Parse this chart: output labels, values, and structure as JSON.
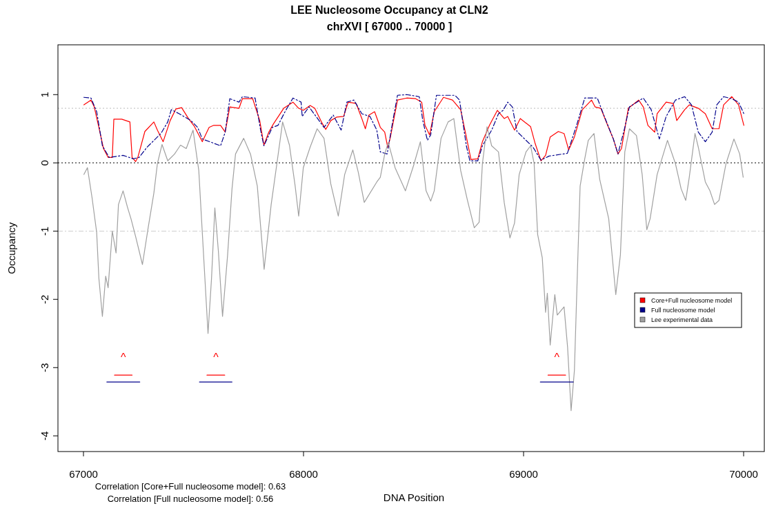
{
  "chart_data": {
    "type": "line",
    "title": "LEE Nucleosome Occupancy at CLN2",
    "subtitle": "chrXVI [ 67000 .. 70000 ]",
    "xlabel": "DNA Position",
    "ylabel": "Occupancy",
    "xlim": [
      66884,
      70094
    ],
    "ylim": [
      -4.23,
      1.73
    ],
    "xticks": [
      67000,
      68000,
      69000,
      70000
    ],
    "yticks": [
      -4,
      -3,
      -2,
      -1,
      0,
      1
    ],
    "grid": false,
    "legend": "right",
    "series": [
      {
        "name": "Core+Full nucleosome model",
        "color": "#ff0000",
        "line_style": "solid",
        "x": [
          67002,
          67034,
          67049,
          67070,
          67091,
          67112,
          67131,
          67138,
          67174,
          67211,
          67221,
          67237,
          67247,
          67279,
          67320,
          67336,
          67362,
          67394,
          67420,
          67446,
          67477,
          67503,
          67540,
          67571,
          67592,
          67623,
          67644,
          67665,
          67707,
          67722,
          67769,
          67801,
          67820,
          67842,
          67863,
          67910,
          67952,
          67978,
          67999,
          68030,
          68051,
          68083,
          68101,
          68124,
          68150,
          68182,
          68203,
          68239,
          68265,
          68281,
          68297,
          68323,
          68349,
          68369,
          68383,
          68395,
          68427,
          68469,
          68510,
          68537,
          68552,
          68573,
          68594,
          68636,
          68677,
          68714,
          68740,
          68761,
          68792,
          68813,
          68845,
          68881,
          68912,
          68928,
          68959,
          68985,
          69032,
          69053,
          69079,
          69100,
          69121,
          69158,
          69184,
          69205,
          69231,
          69267,
          69309,
          69325,
          69351,
          69382,
          69408,
          69429,
          69445,
          69476,
          69523,
          69544,
          69565,
          69596,
          69607,
          69648,
          69680,
          69696,
          69732,
          69753,
          69794,
          69826,
          69857,
          69888,
          69909,
          69946,
          69977,
          70001
        ],
        "values": [
          0.85,
          0.92,
          0.82,
          0.52,
          0.21,
          0.08,
          0.08,
          0.64,
          0.64,
          0.6,
          0.08,
          0.02,
          0.08,
          0.46,
          0.6,
          0.48,
          0.31,
          0.62,
          0.79,
          0.81,
          0.65,
          0.54,
          0.31,
          0.52,
          0.55,
          0.55,
          0.45,
          0.82,
          0.8,
          0.94,
          0.94,
          0.62,
          0.26,
          0.45,
          0.57,
          0.8,
          0.89,
          0.8,
          0.77,
          0.84,
          0.8,
          0.59,
          0.49,
          0.62,
          0.67,
          0.68,
          0.89,
          0.87,
          0.65,
          0.5,
          0.7,
          0.75,
          0.52,
          0.45,
          0.22,
          0.38,
          0.92,
          0.95,
          0.94,
          0.89,
          0.55,
          0.41,
          0.75,
          0.96,
          0.92,
          0.78,
          0.38,
          0.05,
          0.06,
          0.31,
          0.55,
          0.77,
          0.65,
          0.68,
          0.48,
          0.65,
          0.53,
          0.28,
          0.03,
          0.11,
          0.38,
          0.46,
          0.43,
          0.19,
          0.38,
          0.78,
          0.92,
          0.82,
          0.8,
          0.55,
          0.35,
          0.13,
          0.21,
          0.8,
          0.92,
          0.82,
          0.55,
          0.45,
          0.72,
          0.89,
          0.87,
          0.62,
          0.78,
          0.85,
          0.8,
          0.72,
          0.5,
          0.5,
          0.85,
          0.97,
          0.85,
          0.55
        ]
      },
      {
        "name": "Full nucleosome model",
        "color": "#00008b",
        "line_style": "dashed",
        "x": [
          67002,
          67034,
          67060,
          67086,
          67117,
          67180,
          67226,
          67253,
          67289,
          67352,
          67383,
          67399,
          67435,
          67488,
          67519,
          67540,
          67582,
          67623,
          67644,
          67665,
          67707,
          67722,
          67780,
          67806,
          67820,
          67858,
          67884,
          67916,
          67952,
          67989,
          67994,
          68025,
          68057,
          68093,
          68135,
          68171,
          68197,
          68229,
          68265,
          68302,
          68333,
          68349,
          68380,
          68406,
          68427,
          68469,
          68526,
          68542,
          68563,
          68578,
          68604,
          68688,
          68709,
          68740,
          68756,
          68792,
          68813,
          68855,
          68886,
          68907,
          68928,
          68949,
          68970,
          69027,
          69043,
          69079,
          69116,
          69199,
          69241,
          69278,
          69335,
          69367,
          69408,
          69429,
          69460,
          69481,
          69544,
          69580,
          69617,
          69648,
          69690,
          69732,
          69763,
          69794,
          69826,
          69857,
          69878,
          69909,
          69946,
          69977,
          70001
        ],
        "values": [
          0.96,
          0.95,
          0.75,
          0.25,
          0.08,
          0.11,
          0.06,
          0.08,
          0.23,
          0.43,
          0.6,
          0.78,
          0.72,
          0.62,
          0.52,
          0.35,
          0.3,
          0.25,
          0.45,
          0.94,
          0.89,
          0.97,
          0.95,
          0.46,
          0.25,
          0.52,
          0.55,
          0.75,
          0.95,
          0.89,
          0.68,
          0.82,
          0.68,
          0.52,
          0.7,
          0.48,
          0.89,
          0.92,
          0.72,
          0.68,
          0.48,
          0.16,
          0.13,
          0.62,
          0.99,
          1.0,
          0.97,
          0.62,
          0.33,
          0.41,
          0.99,
          0.99,
          0.92,
          0.25,
          0.03,
          0.03,
          0.25,
          0.48,
          0.72,
          0.77,
          0.89,
          0.82,
          0.46,
          0.28,
          0.23,
          0.04,
          0.1,
          0.14,
          0.55,
          0.95,
          0.95,
          0.68,
          0.35,
          0.13,
          0.52,
          0.82,
          0.95,
          0.78,
          0.35,
          0.68,
          0.92,
          0.97,
          0.85,
          0.45,
          0.31,
          0.45,
          0.85,
          0.97,
          0.94,
          0.89,
          0.72
        ]
      },
      {
        "name": "Lee experimental data",
        "color": "#a0a0a0",
        "line_style": "solid",
        "x": [
          67002,
          67018,
          67039,
          67060,
          67070,
          67086,
          67101,
          67112,
          67131,
          67148,
          67159,
          67180,
          67200,
          67216,
          67237,
          67268,
          67294,
          67320,
          67336,
          67357,
          67383,
          67414,
          67441,
          67467,
          67498,
          67524,
          67540,
          67566,
          67582,
          67597,
          67613,
          67632,
          67655,
          67675,
          67691,
          67728,
          67759,
          67790,
          67821,
          67853,
          67879,
          67905,
          67936,
          67962,
          67978,
          67999,
          68030,
          68062,
          68093,
          68124,
          68158,
          68187,
          68224,
          68249,
          68276,
          68333,
          68349,
          68369,
          68385,
          68416,
          68463,
          68500,
          68531,
          68557,
          68578,
          68594,
          68625,
          68657,
          68683,
          68714,
          68745,
          68776,
          68798,
          68813,
          68834,
          68855,
          68886,
          68912,
          68938,
          68959,
          68980,
          69011,
          69032,
          69048,
          69064,
          69085,
          69100,
          69108,
          69121,
          69142,
          69153,
          69184,
          69200,
          69216,
          69231,
          69247,
          69257,
          69278,
          69294,
          69320,
          69346,
          69387,
          69419,
          69440,
          69460,
          69481,
          69513,
          69539,
          69560,
          69575,
          69607,
          69654,
          69690,
          69716,
          69737,
          69753,
          69779,
          69794,
          69826,
          69847,
          69868,
          69888,
          69920,
          69956,
          69982,
          69998
        ],
        "values": [
          -0.17,
          -0.07,
          -0.51,
          -1.02,
          -1.69,
          -2.25,
          -1.66,
          -1.83,
          -1.0,
          -1.32,
          -0.61,
          -0.41,
          -0.65,
          -0.82,
          -1.08,
          -1.49,
          -0.95,
          -0.44,
          -0.01,
          0.27,
          0.03,
          0.13,
          0.26,
          0.21,
          0.48,
          -0.11,
          -1.02,
          -2.5,
          -1.69,
          -0.66,
          -1.29,
          -2.25,
          -1.35,
          -0.38,
          0.13,
          0.36,
          0.13,
          -0.34,
          -1.56,
          -0.61,
          -0.01,
          0.6,
          0.26,
          -0.34,
          -0.78,
          -0.07,
          0.23,
          0.5,
          0.36,
          -0.31,
          -0.78,
          -0.17,
          0.19,
          -0.14,
          -0.58,
          -0.28,
          -0.21,
          0.13,
          0.3,
          -0.07,
          -0.41,
          -0.04,
          0.31,
          -0.41,
          -0.56,
          -0.41,
          0.36,
          0.6,
          0.65,
          -0.11,
          -0.55,
          -0.95,
          -0.87,
          -0.01,
          0.53,
          0.25,
          0.16,
          -0.58,
          -1.1,
          -0.88,
          -0.17,
          0.16,
          0.25,
          -0.01,
          -1.05,
          -1.39,
          -2.19,
          -1.91,
          -2.67,
          -1.93,
          -2.23,
          -2.11,
          -2.7,
          -3.63,
          -3.04,
          -1.35,
          -0.34,
          0.06,
          0.33,
          0.43,
          -0.24,
          -0.82,
          -1.93,
          -1.35,
          0.16,
          0.5,
          0.4,
          -0.17,
          -0.98,
          -0.82,
          -0.17,
          0.33,
          -0.01,
          -0.38,
          -0.55,
          -0.21,
          0.43,
          0.23,
          -0.28,
          -0.41,
          -0.61,
          -0.55,
          -0.01,
          0.35,
          0.13,
          -0.21
        ]
      },
      {
        "color": "#ff0000",
        "line_style": "solid",
        "x": [
          67141,
          67221,
          67400,
          67561,
          67642,
          68400,
          69111,
          69191
        ],
        "values": [
          -3.11,
          -3.11,
          null,
          -3.11,
          -3.11,
          null,
          -3.11,
          -3.11
        ]
      },
      {
        "color": "#00008b",
        "line_style": "solid",
        "x": [
          67106,
          67256,
          67400,
          67527,
          67675,
          68400,
          69076,
          69226
        ],
        "values": [
          -3.21,
          -3.21,
          null,
          -3.21,
          -3.21,
          null,
          -3.21,
          -3.21
        ]
      }
    ],
    "ref_lines": [
      {
        "axis": "y",
        "value": 0,
        "color": "#555555",
        "line_style": "dotted"
      },
      {
        "axis": "y",
        "value": 0.8,
        "color": "#bbbbbb",
        "line_style": "dotted"
      },
      {
        "axis": "y",
        "value": -1,
        "color": "#cccccc",
        "line_style": "dashed"
      }
    ],
    "annotations": [
      "^",
      "^",
      "^",
      "Correlation [Core+Full nucleosome model]: 0.63",
      "Correlation [Full nucleosome model]: 0.56"
    ]
  }
}
